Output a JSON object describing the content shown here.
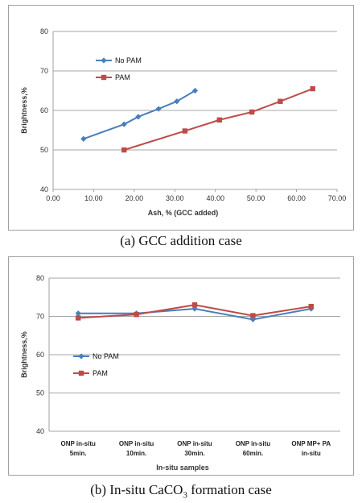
{
  "chart_data": [
    {
      "type": "line",
      "title": "",
      "xlabel": "Ash, % (GCC added)",
      "ylabel": "Brightness,%",
      "xlim": [
        0,
        70
      ],
      "ylim": [
        40,
        80
      ],
      "xticks": [
        "0.00",
        "10.00",
        "20.00",
        "30.00",
        "40.00",
        "50.00",
        "60.00",
        "70.00"
      ],
      "yticks": [
        "40",
        "50",
        "60",
        "70",
        "80"
      ],
      "grid": "horizontal",
      "legend": "top-left",
      "series": [
        {
          "name": "No PAM",
          "color": "#4a7ebb",
          "marker": "diamond",
          "x": [
            7.5,
            17.5,
            21.0,
            26.0,
            30.5,
            35.0
          ],
          "y": [
            52.8,
            56.5,
            58.4,
            60.4,
            62.3,
            65.0
          ]
        },
        {
          "name": "PAM",
          "color": "#be4b48",
          "marker": "square",
          "x": [
            17.5,
            32.5,
            41.0,
            49.0,
            56.0,
            64.0
          ],
          "y": [
            50.0,
            54.8,
            57.6,
            59.6,
            62.3,
            65.5
          ]
        }
      ]
    },
    {
      "type": "line",
      "title": "",
      "xlabel": "In-situ samples",
      "ylabel": "Brightness,%",
      "ylim": [
        40,
        80
      ],
      "yticks": [
        "40",
        "50",
        "60",
        "70",
        "80"
      ],
      "grid": "horizontal",
      "legend": "left",
      "categories": [
        [
          "ONP in-situ",
          "5min."
        ],
        [
          "ONP in-situ",
          "10min."
        ],
        [
          "ONP in-situ",
          "30min."
        ],
        [
          "ONP in-situ",
          "60min."
        ],
        [
          "ONP MP+ PA",
          "in-situ"
        ]
      ],
      "series": [
        {
          "name": "No PAM",
          "color": "#4a7ebb",
          "marker": "diamond",
          "values": [
            70.8,
            70.8,
            72.0,
            69.2,
            72.0
          ]
        },
        {
          "name": "PAM",
          "color": "#be4b48",
          "marker": "square",
          "values": [
            69.6,
            70.5,
            73.0,
            70.2,
            72.6
          ]
        }
      ]
    }
  ],
  "captions": {
    "a": "(a) GCC addition case",
    "b_prefix": "(b) In-situ CaCO",
    "b_sub": "3",
    "b_suffix": " formation case"
  }
}
